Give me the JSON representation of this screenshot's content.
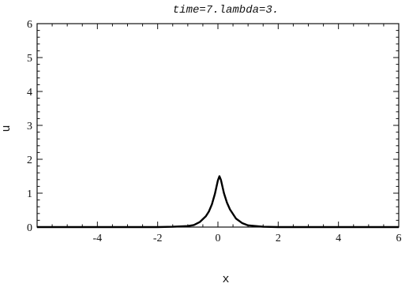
{
  "chart_data": {
    "type": "line",
    "title": "time=7.lambda=3.",
    "xlabel": "x",
    "ylabel": "u",
    "xlim": [
      -6,
      6
    ],
    "ylim": [
      0,
      6
    ],
    "xticks": [
      -4,
      -2,
      0,
      2,
      4,
      6
    ],
    "yticks": [
      0,
      1,
      2,
      3,
      4,
      5,
      6
    ],
    "grid": false,
    "series": [
      {
        "x": [
          -6,
          -3,
          -2,
          -1.5,
          -1,
          -0.8,
          -0.6,
          -0.4,
          -0.3,
          -0.2,
          -0.1,
          0,
          0.05,
          0.1,
          0.2,
          0.3,
          0.4,
          0.6,
          0.8,
          1,
          1.5,
          2,
          3,
          6
        ],
        "y": [
          0,
          0,
          0,
          0.01,
          0.03,
          0.06,
          0.15,
          0.32,
          0.46,
          0.67,
          0.98,
          1.38,
          1.5,
          1.39,
          1.0,
          0.72,
          0.52,
          0.25,
          0.12,
          0.05,
          0.01,
          0,
          0,
          0
        ]
      }
    ]
  }
}
